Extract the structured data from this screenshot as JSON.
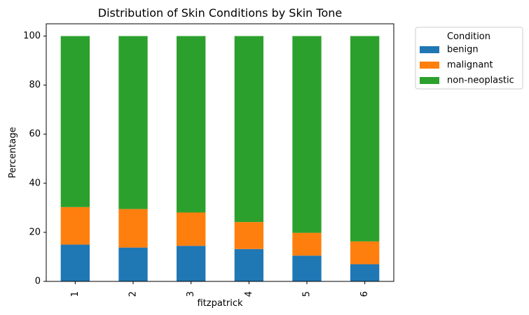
{
  "chart_data": {
    "type": "bar",
    "stacked": true,
    "title": "Distribution of Skin Conditions by Skin Tone",
    "xlabel": "fitzpatrick",
    "ylabel": "Percentage",
    "categories": [
      "1",
      "2",
      "3",
      "4",
      "5",
      "6"
    ],
    "ylim": [
      0,
      105
    ],
    "yticks": [
      "0",
      "20",
      "40",
      "60",
      "80",
      "100"
    ],
    "grid": false,
    "legend": {
      "title": "Condition",
      "placement": "outside upper right",
      "entries": [
        "benign",
        "malignant",
        "non-neoplastic"
      ]
    },
    "series": [
      {
        "name": "benign",
        "color": "#1f77b4",
        "values": [
          15.0,
          13.8,
          14.5,
          13.2,
          10.5,
          7.0
        ]
      },
      {
        "name": "malignant",
        "color": "#ff7f0e",
        "values": [
          15.3,
          15.7,
          13.6,
          11.0,
          9.3,
          9.3
        ]
      },
      {
        "name": "non-neoplastic",
        "color": "#2ca02c",
        "values": [
          69.7,
          70.5,
          71.9,
          75.8,
          80.2,
          83.7
        ]
      }
    ]
  }
}
